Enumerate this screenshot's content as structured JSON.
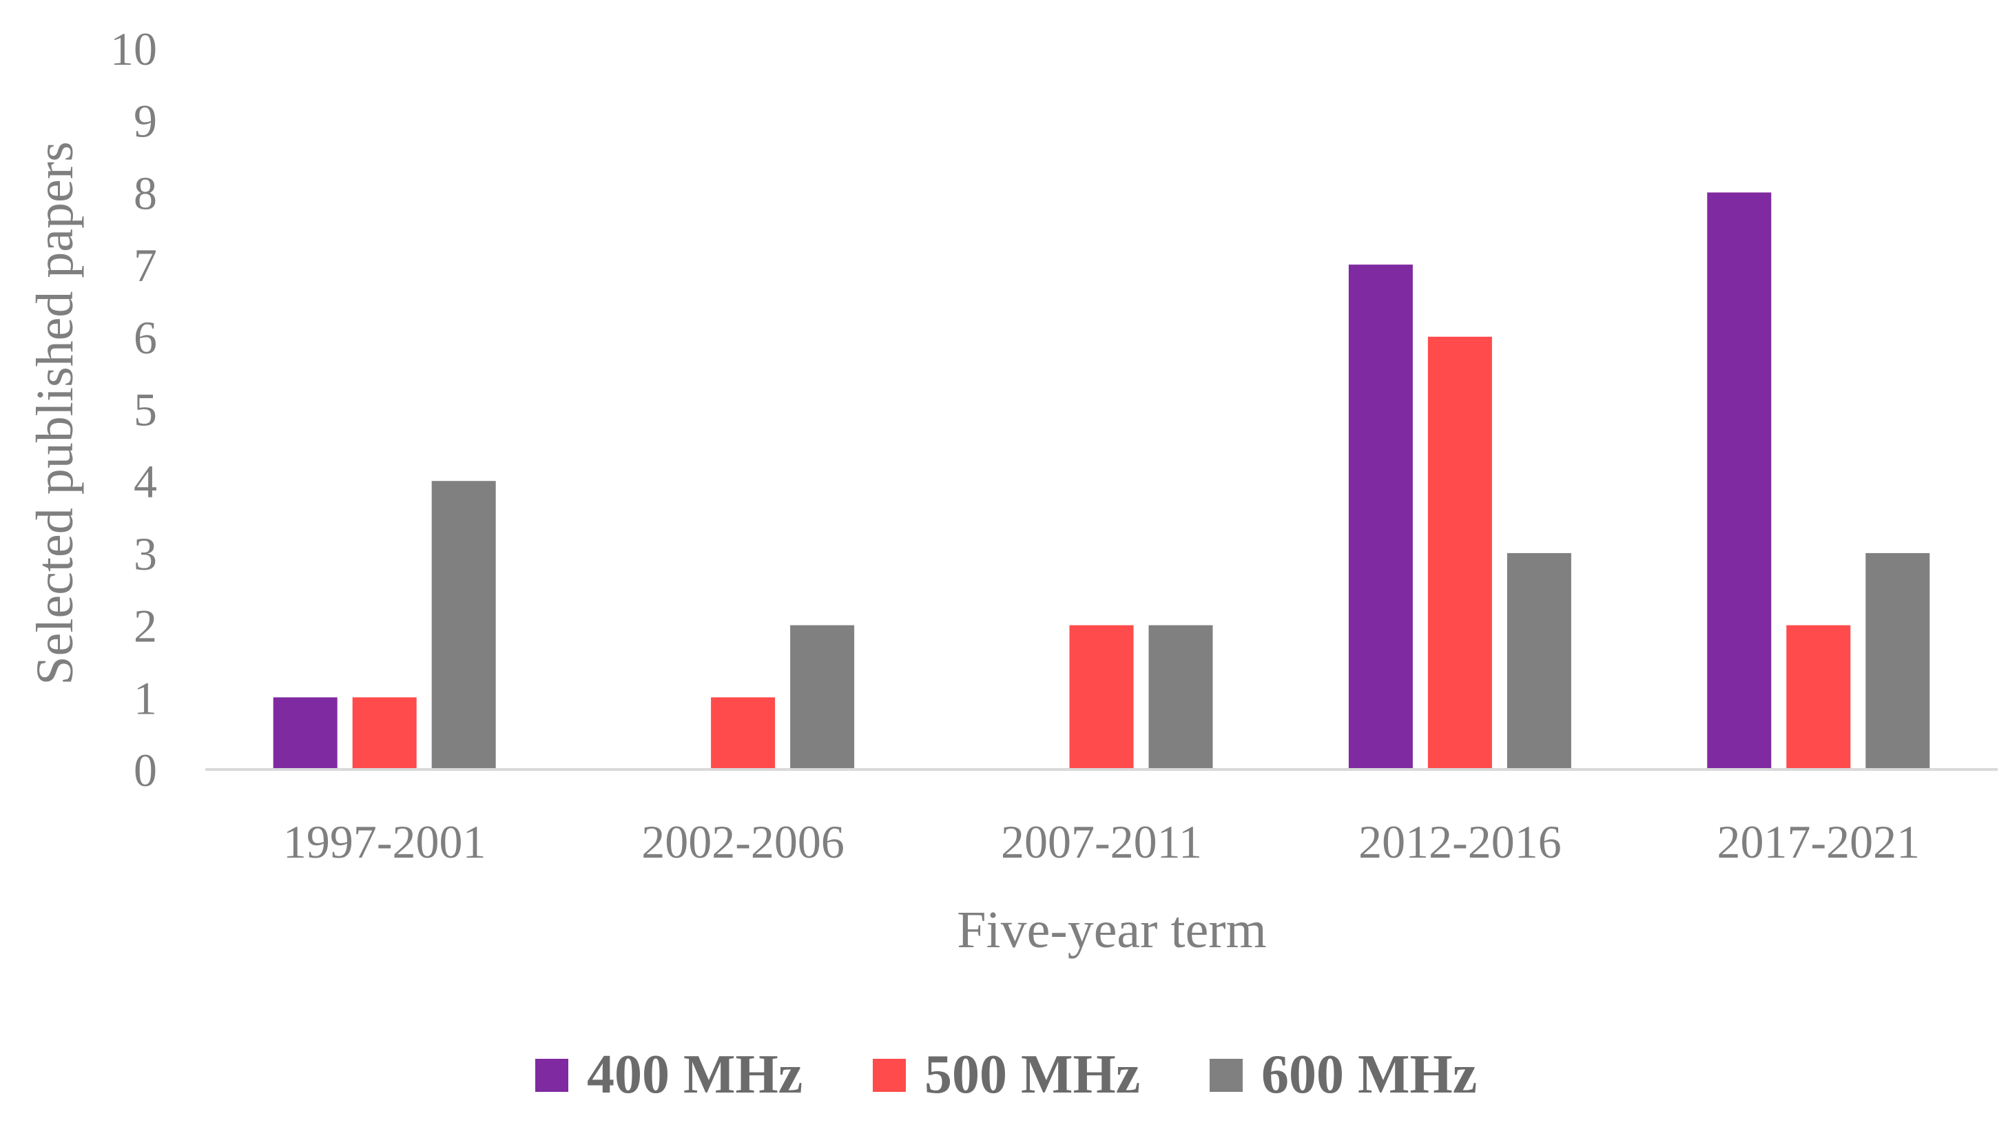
{
  "chart_data": {
    "type": "bar",
    "title": "",
    "xlabel": "Five-year term",
    "ylabel": "Selected published papers",
    "categories": [
      "1997-2001",
      "2002-2006",
      "2007-2011",
      "2012-2016",
      "2017-2021"
    ],
    "series": [
      {
        "name": "400 MHz",
        "color": "#7f2aa0",
        "values": [
          1,
          0,
          0,
          7,
          8
        ]
      },
      {
        "name": "500 MHz",
        "color": "#ff4b4b",
        "values": [
          1,
          1,
          2,
          6,
          2
        ]
      },
      {
        "name": "600 MHz",
        "color": "#808080",
        "values": [
          4,
          2,
          2,
          3,
          3
        ]
      }
    ],
    "ylim": [
      0,
      10
    ],
    "yticks": [
      "0",
      "1",
      "2",
      "3",
      "4",
      "5",
      "6",
      "7",
      "8",
      "9",
      "10"
    ],
    "grid": false,
    "legend_position": "bottom"
  }
}
